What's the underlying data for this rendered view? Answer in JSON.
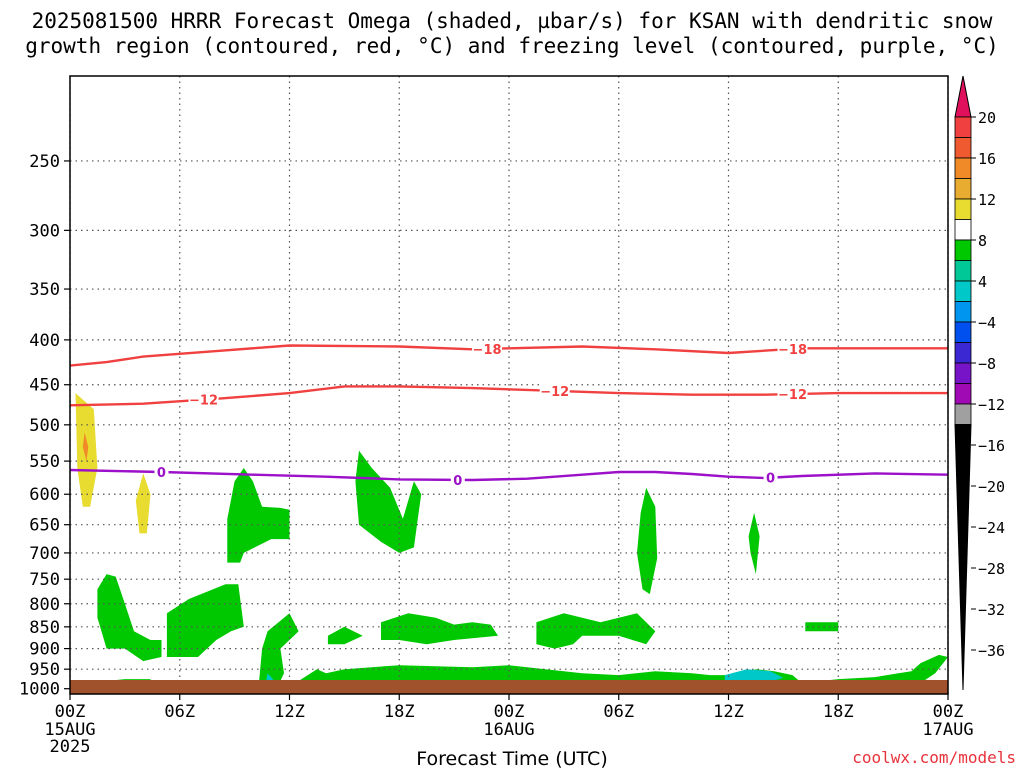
{
  "header": {
    "line1": "2025081500 HRRR Forecast Omega (shaded, µbar/s) for KSAN with dendritic snow",
    "line2": "growth region (contoured, red, °C) and freezing level (contoured, purple, °C)"
  },
  "footer": {
    "xlabel": "Forecast Time (UTC)",
    "credit": "coolwx.com/models"
  },
  "chart_data": {
    "type": "heatmap",
    "title": "2025081500 HRRR Forecast Omega (shaded, µbar/s) for KSAN with dendritic snow growth region (contoured, red, °C) and freezing level (contoured, purple, °C)",
    "xlabel": "Forecast Time (UTC)",
    "ylabel": "",
    "x_ticks": [
      {
        "h": 0,
        "label": "00Z",
        "sub": [
          "15AUG",
          "2025"
        ]
      },
      {
        "h": 6,
        "label": "06Z",
        "sub": []
      },
      {
        "h": 12,
        "label": "12Z",
        "sub": []
      },
      {
        "h": 18,
        "label": "18Z",
        "sub": []
      },
      {
        "h": 24,
        "label": "00Z",
        "sub": [
          "16AUG"
        ]
      },
      {
        "h": 30,
        "label": "06Z",
        "sub": []
      },
      {
        "h": 36,
        "label": "12Z",
        "sub": []
      },
      {
        "h": 42,
        "label": "18Z",
        "sub": []
      },
      {
        "h": 48,
        "label": "00Z",
        "sub": [
          "17AUG"
        ]
      }
    ],
    "x_range_hours": [
      0,
      48
    ],
    "y_ticks": [
      250,
      300,
      350,
      400,
      450,
      500,
      550,
      600,
      650,
      700,
      750,
      800,
      850,
      900,
      950,
      1000
    ],
    "y_range_hPa": [
      200,
      1014
    ],
    "y_scale": "log-pressure",
    "grid": true,
    "colorbar": {
      "labels": [
        "20",
        "16",
        "12",
        "8",
        "4",
        "−4",
        "−8",
        "−12",
        "−16",
        "−20",
        "−24",
        "−28",
        "−32",
        "−36"
      ],
      "colors": [
        "#e0105c",
        "#f04040",
        "#f05a30",
        "#f08a28",
        "#e8ac30",
        "#e8dc30",
        "#ffffff",
        "#00c800",
        "#00c896",
        "#00c8c8",
        "#0096f0",
        "#0050f0",
        "#3c28d2",
        "#7814c8",
        "#a00ab4",
        "#a0a0a0",
        "#000000"
      ]
    },
    "contours": [
      {
        "name": "-18",
        "color": "#f04040",
        "labels": [
          {
            "h": 22.8,
            "text": "−18"
          },
          {
            "h": 39.5,
            "text": "−18"
          }
        ],
        "points": [
          [
            0,
            428
          ],
          [
            2,
            424
          ],
          [
            4,
            418
          ],
          [
            8,
            412
          ],
          [
            12,
            406
          ],
          [
            18,
            407
          ],
          [
            22,
            410
          ],
          [
            24,
            409
          ],
          [
            28,
            407
          ],
          [
            32,
            410
          ],
          [
            36,
            414
          ],
          [
            40,
            409
          ],
          [
            44,
            409
          ],
          [
            48,
            409
          ]
        ]
      },
      {
        "name": "-12",
        "color": "#f04040",
        "labels": [
          {
            "h": 7.3,
            "text": "−12"
          },
          {
            "h": 26.5,
            "text": "−12"
          },
          {
            "h": 39.5,
            "text": "−12"
          }
        ],
        "points": [
          [
            0,
            475
          ],
          [
            4,
            473
          ],
          [
            8,
            467
          ],
          [
            12,
            460
          ],
          [
            15,
            452
          ],
          [
            18,
            452
          ],
          [
            22,
            454
          ],
          [
            26,
            457
          ],
          [
            30,
            460
          ],
          [
            34,
            462
          ],
          [
            38,
            462
          ],
          [
            42,
            460
          ],
          [
            48,
            460
          ]
        ]
      },
      {
        "name": "0",
        "color": "#9b10c8",
        "labels": [
          {
            "h": 5,
            "text": "0"
          },
          {
            "h": 21.2,
            "text": "0"
          },
          {
            "h": 38.3,
            "text": "0"
          }
        ],
        "points": [
          [
            0,
            563
          ],
          [
            5,
            566
          ],
          [
            10,
            570
          ],
          [
            14,
            573
          ],
          [
            18,
            577
          ],
          [
            22,
            578
          ],
          [
            25,
            576
          ],
          [
            28,
            570
          ],
          [
            30,
            566
          ],
          [
            32,
            566
          ],
          [
            34,
            569
          ],
          [
            36,
            573
          ],
          [
            38,
            575
          ],
          [
            40,
            572
          ],
          [
            44,
            568
          ],
          [
            48,
            570
          ]
        ]
      }
    ],
    "omega_regions": [
      {
        "value": 6,
        "color": "#e8dc30",
        "points": [
          [
            0.3,
            460
          ],
          [
            1.3,
            480
          ],
          [
            1.5,
            560
          ],
          [
            1.1,
            620
          ],
          [
            0.7,
            620
          ],
          [
            0.4,
            560
          ]
        ]
      },
      {
        "value": 10,
        "color": "#f08a28",
        "points": [
          [
            0.8,
            510
          ],
          [
            1,
            530
          ],
          [
            0.9,
            550
          ],
          [
            0.7,
            530
          ]
        ]
      },
      {
        "value": 6,
        "color": "#e8dc30",
        "points": [
          [
            4,
            568
          ],
          [
            4.4,
            600
          ],
          [
            4.2,
            665
          ],
          [
            3.8,
            665
          ],
          [
            3.6,
            610
          ]
        ]
      },
      {
        "value": -6,
        "color": "#00c800",
        "points": [
          [
            9.5,
            560
          ],
          [
            10,
            580
          ],
          [
            10.5,
            620
          ],
          [
            11.5,
            622
          ],
          [
            12,
            625
          ],
          [
            12,
            675
          ],
          [
            11,
            675
          ],
          [
            9.5,
            700
          ],
          [
            9.3,
            718
          ],
          [
            8.6,
            718
          ],
          [
            8.6,
            640
          ],
          [
            9,
            580
          ]
        ]
      },
      {
        "value": -6,
        "color": "#00c800",
        "points": [
          [
            15.8,
            535
          ],
          [
            16.5,
            560
          ],
          [
            17.5,
            590
          ],
          [
            18.2,
            640
          ],
          [
            18.8,
            580
          ],
          [
            19.2,
            600
          ],
          [
            18.8,
            690
          ],
          [
            18,
            700
          ],
          [
            17,
            680
          ],
          [
            15.8,
            650
          ],
          [
            15.6,
            580
          ]
        ]
      },
      {
        "value": -6,
        "color": "#00c800",
        "points": [
          [
            1.5,
            770
          ],
          [
            2,
            740
          ],
          [
            2.5,
            745
          ],
          [
            3,
            800
          ],
          [
            3.5,
            860
          ],
          [
            4.4,
            880
          ],
          [
            5,
            880
          ],
          [
            5,
            920
          ],
          [
            4,
            930
          ],
          [
            3,
            900
          ],
          [
            2,
            900
          ],
          [
            1.5,
            830
          ]
        ]
      },
      {
        "value": -6,
        "color": "#00c800",
        "points": [
          [
            5.3,
            820
          ],
          [
            6.5,
            790
          ],
          [
            8.5,
            760
          ],
          [
            9.2,
            760
          ],
          [
            9.5,
            850
          ],
          [
            8.8,
            860
          ],
          [
            8,
            880
          ],
          [
            7,
            920
          ],
          [
            5.3,
            920
          ]
        ]
      },
      {
        "value": -6,
        "color": "#00c800",
        "points": [
          [
            2,
            980
          ],
          [
            3,
            975
          ],
          [
            4.4,
            975
          ],
          [
            4.4,
            1000
          ],
          [
            2,
            1000
          ]
        ]
      },
      {
        "value": -6,
        "color": "#00c800",
        "points": [
          [
            10.8,
            860
          ],
          [
            12,
            820
          ],
          [
            12.5,
            860
          ],
          [
            11.5,
            900
          ],
          [
            11.7,
            960
          ],
          [
            11.3,
            1000
          ],
          [
            10.3,
            1000
          ],
          [
            10.4,
            950
          ],
          [
            10.5,
            900
          ]
        ]
      },
      {
        "value": -14,
        "color": "#00c8c8",
        "points": [
          [
            10.8,
            960
          ],
          [
            11.1,
            975
          ],
          [
            10.9,
            995
          ],
          [
            10.7,
            985
          ]
        ]
      },
      {
        "value": -6,
        "color": "#00c800",
        "points": [
          [
            14.1,
            870
          ],
          [
            15,
            850
          ],
          [
            16,
            870
          ],
          [
            15,
            890
          ],
          [
            14.1,
            890
          ]
        ]
      },
      {
        "value": -6,
        "color": "#00c800",
        "points": [
          [
            17,
            840
          ],
          [
            18.5,
            820
          ],
          [
            20,
            830
          ],
          [
            21,
            845
          ],
          [
            22,
            840
          ],
          [
            23,
            845
          ],
          [
            23.4,
            870
          ],
          [
            21,
            880
          ],
          [
            19.5,
            890
          ],
          [
            18,
            880
          ],
          [
            17,
            880
          ]
        ]
      },
      {
        "value": -6,
        "color": "#00c800",
        "points": [
          [
            25.5,
            840
          ],
          [
            27,
            820
          ],
          [
            29,
            840
          ],
          [
            31,
            820
          ],
          [
            32,
            860
          ],
          [
            31.5,
            890
          ],
          [
            30,
            870
          ],
          [
            28,
            870
          ],
          [
            27.5,
            890
          ],
          [
            26.5,
            900
          ],
          [
            25.5,
            890
          ]
        ]
      },
      {
        "value": -6,
        "color": "#00c800",
        "points": [
          [
            40.2,
            840
          ],
          [
            42,
            840
          ],
          [
            42,
            860
          ],
          [
            40.2,
            860
          ]
        ]
      },
      {
        "value": -6,
        "color": "#00c800",
        "points": [
          [
            12.5,
            980
          ],
          [
            13.5,
            950
          ],
          [
            14,
            960
          ],
          [
            15,
            950
          ],
          [
            18,
            940
          ],
          [
            22,
            945
          ],
          [
            24,
            940
          ],
          [
            26,
            950
          ],
          [
            28,
            960
          ],
          [
            30,
            965
          ],
          [
            32,
            955
          ],
          [
            34,
            960
          ],
          [
            35,
            965
          ],
          [
            36.5,
            965
          ],
          [
            37.5,
            950
          ],
          [
            38.5,
            955
          ],
          [
            39.5,
            965
          ],
          [
            40,
            985
          ],
          [
            42,
            975
          ],
          [
            44,
            970
          ],
          [
            46,
            955
          ],
          [
            46.5,
            935
          ],
          [
            47.5,
            915
          ],
          [
            48,
            920
          ],
          [
            47.3,
            960
          ],
          [
            46.5,
            985
          ],
          [
            44,
            995
          ],
          [
            42,
            1000
          ],
          [
            40,
            1000
          ],
          [
            38,
            995
          ],
          [
            36,
            1000
          ],
          [
            34,
            1000
          ],
          [
            30,
            1000
          ],
          [
            26,
            1000
          ],
          [
            20,
            1000
          ],
          [
            16,
            1000
          ],
          [
            13,
            1000
          ]
        ]
      },
      {
        "value": -14,
        "color": "#00c8c8",
        "points": [
          [
            35.8,
            965
          ],
          [
            37,
            950
          ],
          [
            38.3,
            955
          ],
          [
            39,
            972
          ],
          [
            38,
            985
          ],
          [
            36.8,
            987
          ],
          [
            35.8,
            980
          ]
        ]
      },
      {
        "value": -6,
        "color": "#00c800",
        "points": [
          [
            31.5,
            590
          ],
          [
            32,
            620
          ],
          [
            32.1,
            710
          ],
          [
            31.7,
            780
          ],
          [
            31.3,
            770
          ],
          [
            31,
            700
          ],
          [
            31.2,
            630
          ]
        ]
      },
      {
        "value": -6,
        "color": "#00c800",
        "points": [
          [
            37.4,
            630
          ],
          [
            37.7,
            670
          ],
          [
            37.5,
            740
          ],
          [
            37.2,
            700
          ],
          [
            37.1,
            670
          ]
        ]
      }
    ]
  }
}
